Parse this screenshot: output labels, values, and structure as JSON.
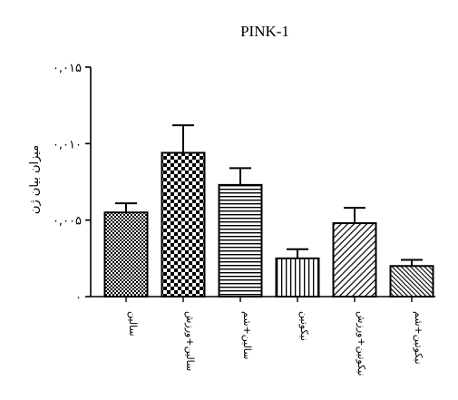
{
  "chart_data": {
    "type": "bar",
    "title": "PINK-1",
    "ylabel": "میزان بیان ژن",
    "xlabel": "",
    "ylim": [
      0,
      0.015
    ],
    "yticks": [
      0,
      0.005,
      0.01,
      0.015
    ],
    "ytick_labels": [
      "۰",
      "۰,۰۰۵",
      "۰,۰۱۰",
      "۰,۰۱۵"
    ],
    "categories": [
      "سالین",
      "سالین+ورزش",
      "سالین+شم",
      "نیکوتین",
      "نیکوتین+ورزش",
      "نیکوتین+شم"
    ],
    "values": [
      0.0055,
      0.0094,
      0.0073,
      0.0025,
      0.0048,
      0.002
    ],
    "errors": [
      0.0006,
      0.0018,
      0.0011,
      0.0006,
      0.001,
      0.0004
    ],
    "patterns": [
      "check-fine",
      "check-coarse",
      "horizontal",
      "vertical",
      "diagonal",
      "diagonal-dense"
    ],
    "colors": {
      "bar_stroke": "#000000",
      "pattern": "#000000",
      "background": "#ffffff"
    },
    "grid": false,
    "legend": "none"
  }
}
